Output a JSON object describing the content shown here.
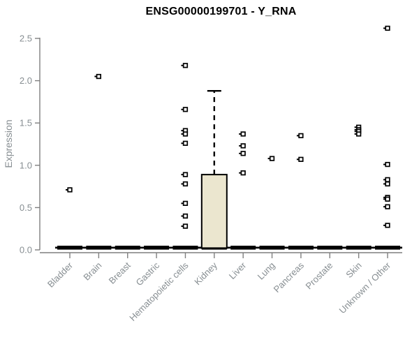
{
  "chart_data": {
    "type": "boxplot",
    "title": "ENSG00000199701 - Y_RNA",
    "ylabel": "Expression",
    "xlabel": "",
    "ylim": [
      0.0,
      2.5
    ],
    "yticks": [
      0.0,
      0.5,
      1.0,
      1.5,
      2.0,
      2.5
    ],
    "grid": false,
    "legend": false,
    "categories": [
      "Bladder",
      "Brain",
      "Breast",
      "Gastric",
      "Hematopoietic cells",
      "Kidney",
      "Liver",
      "Lung",
      "Pancreas",
      "Prostate",
      "Skin",
      "Unknown / Other"
    ],
    "series": [
      {
        "category": "Bladder",
        "median": 0,
        "q1": 0,
        "q3": 0,
        "whisker_low": 0,
        "whisker_high": 0,
        "outliers": [
          0.71
        ]
      },
      {
        "category": "Brain",
        "median": 0,
        "q1": 0,
        "q3": 0,
        "whisker_low": 0,
        "whisker_high": 0,
        "outliers": [
          2.05
        ]
      },
      {
        "category": "Breast",
        "median": 0,
        "q1": 0,
        "q3": 0,
        "whisker_low": 0,
        "whisker_high": 0,
        "outliers": []
      },
      {
        "category": "Gastric",
        "median": 0,
        "q1": 0,
        "q3": 0,
        "whisker_low": 0,
        "whisker_high": 0,
        "outliers": []
      },
      {
        "category": "Hematopoietic cells",
        "median": 0,
        "q1": 0,
        "q3": 0,
        "whisker_low": 0,
        "whisker_high": 0,
        "outliers": [
          2.18,
          1.66,
          1.41,
          1.37,
          1.26,
          0.89,
          0.78,
          0.55,
          0.4,
          0.28
        ]
      },
      {
        "category": "Kidney",
        "median": 0.02,
        "q1": 0.02,
        "q3": 0.89,
        "whisker_low": 0,
        "whisker_high": 1.88,
        "outliers": []
      },
      {
        "category": "Liver",
        "median": 0,
        "q1": 0,
        "q3": 0,
        "whisker_low": 0,
        "whisker_high": 0,
        "outliers": [
          1.37,
          1.23,
          1.14,
          0.91
        ]
      },
      {
        "category": "Lung",
        "median": 0,
        "q1": 0,
        "q3": 0,
        "whisker_low": 0,
        "whisker_high": 0,
        "outliers": [
          1.08
        ]
      },
      {
        "category": "Pancreas",
        "median": 0,
        "q1": 0,
        "q3": 0,
        "whisker_low": 0,
        "whisker_high": 0,
        "outliers": [
          1.35,
          1.07
        ]
      },
      {
        "category": "Prostate",
        "median": 0,
        "q1": 0,
        "q3": 0,
        "whisker_low": 0,
        "whisker_high": 0,
        "outliers": []
      },
      {
        "category": "Skin",
        "median": 0,
        "q1": 0,
        "q3": 0,
        "whisker_low": 0,
        "whisker_high": 0,
        "outliers": [
          1.45,
          1.42,
          1.4,
          1.37
        ]
      },
      {
        "category": "Unknown / Other",
        "median": 0,
        "q1": 0,
        "q3": 0,
        "whisker_low": 0,
        "whisker_high": 0,
        "outliers": [
          2.62,
          1.01,
          0.83,
          0.78,
          0.62,
          0.6,
          0.51,
          0.29
        ]
      }
    ],
    "colors": {
      "box_fill": "#EBE6CF",
      "box_stroke": "#000000",
      "baseline_bar": "#000000",
      "outlier": "#000000",
      "axis": "#7F7F7F",
      "tick_label": "#878E92",
      "title": "#000000",
      "background": "#FFFFFF"
    }
  }
}
